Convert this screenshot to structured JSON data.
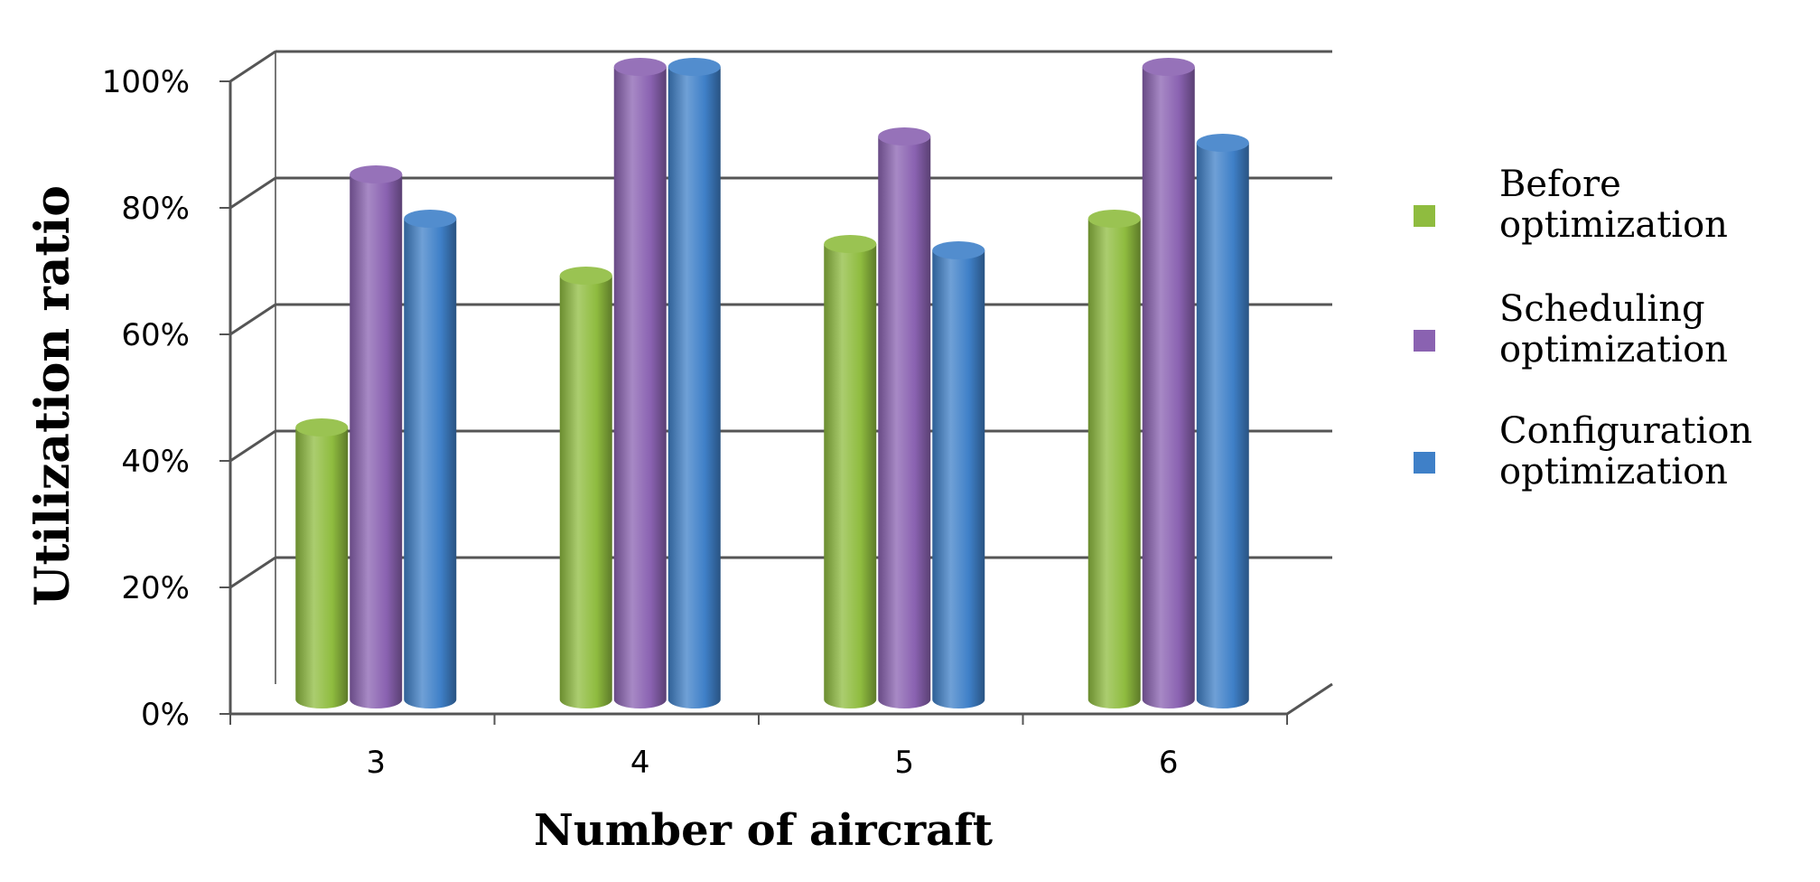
{
  "chart_data": {
    "type": "bar",
    "style": "3d-cylinder",
    "categories": [
      "3",
      "4",
      "5",
      "6"
    ],
    "series": [
      {
        "name": "Before optimization",
        "color": "#8fbc3f",
        "values": [
          43,
          67,
          72,
          76
        ]
      },
      {
        "name": "Scheduling optimization",
        "color": "#8a62b1",
        "values": [
          83,
          100,
          89,
          100
        ]
      },
      {
        "name": "Configuration optimization",
        "color": "#3f80c8",
        "values": [
          76,
          100,
          71,
          88
        ]
      }
    ],
    "xlabel": "Number of aircraft",
    "ylabel": "Utilization ratio",
    "y_ticks": [
      "0%",
      "20%",
      "40%",
      "60%",
      "80%",
      "100%"
    ],
    "ylim": [
      0,
      100
    ],
    "grid": true,
    "legend_position": "right",
    "legend_lines": [
      [
        "Before",
        "optimization"
      ],
      [
        "Scheduling",
        "optimization"
      ],
      [
        "Configuration",
        "optimization"
      ]
    ]
  }
}
